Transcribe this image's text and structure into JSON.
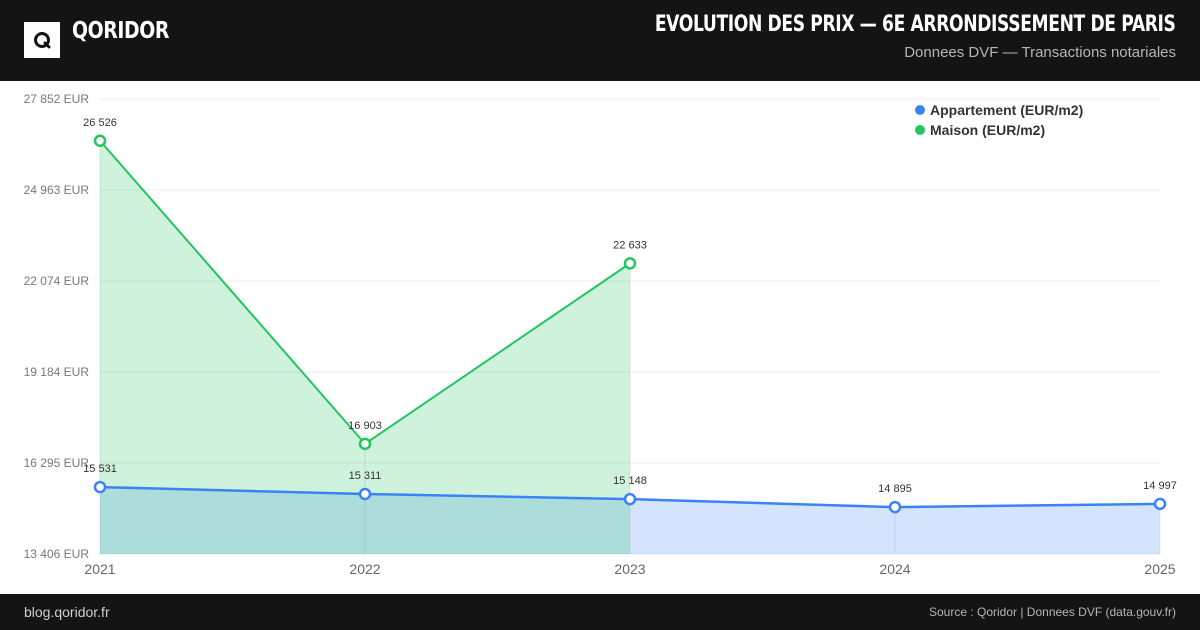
{
  "brand": {
    "name": "QORIDOR",
    "logo_letter": "Q"
  },
  "header": {
    "title": "EVOLUTION DES PRIX — 6E ARRONDISSEMENT DE PARIS",
    "subtitle": "Donnees DVF — Transactions notariales"
  },
  "footer": {
    "left": "blog.qoridor.fr",
    "right": "Source : Qoridor | Donnees DVF (data.gouv.fr)"
  },
  "colors": {
    "appartement": "#3b82f6",
    "maison": "#22c55e",
    "header_bg": "#141414"
  },
  "chart_data": {
    "type": "line",
    "x": [
      "2021",
      "2022",
      "2023",
      "2024",
      "2025"
    ],
    "y_ticks": [
      13406,
      16295,
      19184,
      22074,
      24963,
      27852
    ],
    "y_tick_labels": [
      "13 406 EUR",
      "16 295 EUR",
      "19 184 EUR",
      "22 074 EUR",
      "24 963 EUR",
      "27 852 EUR"
    ],
    "ylim": [
      13406,
      27852
    ],
    "grid": true,
    "legend_position": "top-right",
    "area_fill": true,
    "series": [
      {
        "name": "Appartement (EUR/m2)",
        "values": [
          15531,
          15311,
          15148,
          14895,
          14997
        ],
        "labels": [
          "15 531",
          "15 311",
          "15 148",
          "14 895",
          "14 997"
        ]
      },
      {
        "name": "Maison (EUR/m2)",
        "values": [
          26526,
          16903,
          22633,
          null,
          null
        ],
        "labels": [
          "26 526",
          "16 903",
          "22 633",
          "",
          ""
        ]
      }
    ]
  }
}
